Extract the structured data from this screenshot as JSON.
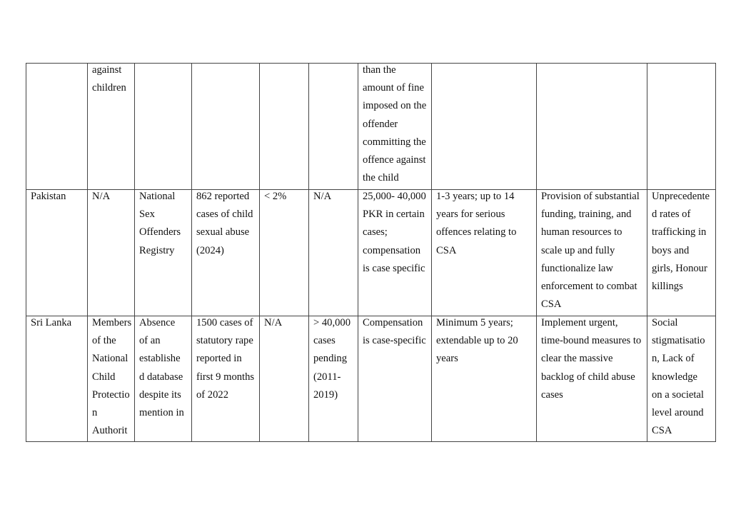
{
  "rows": [
    {
      "cells": [
        "",
        "against\nchildren",
        "",
        "",
        "",
        "",
        "than the\namount of fine\nimposed on the\noffender\ncommitting the\noffence against\nthe child",
        "",
        "",
        ""
      ]
    },
    {
      "cells": [
        "Pakistan",
        "N/A",
        "National\nSex\nOffenders\nRegistry",
        "862 reported\ncases of child\nsexual abuse\n(2024)",
        "< 2%",
        "N/A",
        "25,000- 40,000\nPKR in certain\ncases;\ncompensation\nis case specific",
        "1-3 years; up to 14\nyears for serious\noffences relating to\nCSA",
        "Provision of substantial\nfunding, training, and\nhuman resources to\nscale up and fully\nfunctionalize law\nenforcement to combat\nCSA",
        "Unprecedente\nd rates of\ntrafficking in\nboys and\ngirls, Honour\nkillings"
      ]
    },
    {
      "cells": [
        "Sri Lanka",
        "Members\nof the\nNational\nChild\nProtectio\nn\nAuthorit",
        "Absence\nof an\nestablishe\nd database\ndespite its\nmention in",
        "1500 cases of\nstatutory rape\nreported in\nfirst 9 months\nof 2022",
        "N/A",
        "> 40,000\ncases\npending\n(2011-\n2019)",
        "Compensation\nis case-specific",
        "Minimum 5 years;\nextendable up to 20\nyears",
        "Implement urgent,\ntime-bound measures to\nclear the massive\nbacklog of child abuse\ncases",
        "Social\nstigmatisatio\nn, Lack of\nknowledge\non a societal\nlevel around\nCSA"
      ]
    }
  ]
}
